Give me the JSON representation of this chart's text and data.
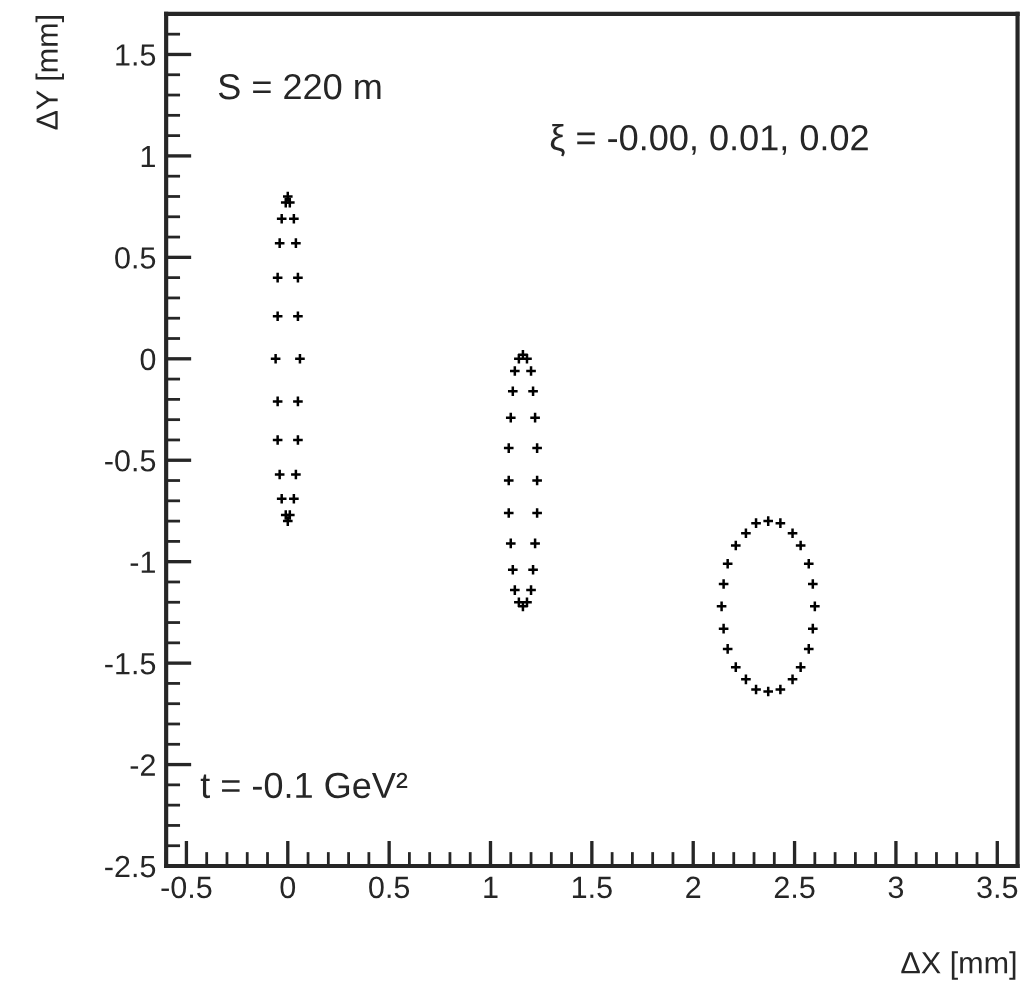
{
  "chart_data": {
    "type": "scatter",
    "xlabel": "ΔX [mm]",
    "ylabel": "ΔY [mm]",
    "annotations": [
      "S = 220 m",
      "ξ = -0.00, 0.01, 0.02",
      "t = -0.1 GeV²"
    ],
    "marker": "cross",
    "grid": false,
    "xlim": [
      -0.6,
      3.6
    ],
    "ylim": [
      -2.5,
      1.7
    ],
    "xticks": [
      -0.5,
      0,
      0.5,
      1,
      1.5,
      2,
      2.5,
      3,
      3.5
    ],
    "yticks": [
      -2.5,
      -2,
      -1.5,
      -1,
      -0.5,
      0,
      0.5,
      1,
      1.5
    ],
    "series": [
      {
        "color": "#000000",
        "x": [
          0,
          0.01,
          0.03,
          0.04,
          0.05,
          0.05,
          0.06,
          0.05,
          0.05,
          0.04,
          0.03,
          0.01,
          0,
          -0.01,
          -0.03,
          -0.04,
          -0.05,
          -0.05,
          -0.06,
          -0.05,
          -0.05,
          -0.04,
          -0.03,
          -0.01
        ],
        "values": [
          0.8,
          0.77,
          0.69,
          0.57,
          0.4,
          0.21,
          0,
          -0.21,
          -0.4,
          -0.57,
          -0.69,
          -0.77,
          -0.8,
          -0.77,
          -0.69,
          -0.57,
          -0.4,
          -0.21,
          0,
          0.21,
          0.4,
          0.57,
          0.69,
          0.77
        ]
      },
      {
        "color": "#000000",
        "x": [
          1.16,
          1.18,
          1.2,
          1.21,
          1.22,
          1.23,
          1.23,
          1.23,
          1.22,
          1.21,
          1.2,
          1.18,
          1.16,
          1.14,
          1.12,
          1.11,
          1.1,
          1.09,
          1.09,
          1.09,
          1.1,
          1.11,
          1.12,
          1.14
        ],
        "values": [
          0.02,
          0,
          -0.06,
          -0.16,
          -0.29,
          -0.44,
          -0.6,
          -0.76,
          -0.91,
          -1.04,
          -1.14,
          -1.2,
          -1.22,
          -1.2,
          -1.14,
          -1.04,
          -0.91,
          -0.76,
          -0.6,
          -0.44,
          -0.29,
          -0.16,
          -0.06,
          0
        ]
      },
      {
        "color": "#000000",
        "x": [
          2.37,
          2.43,
          2.49,
          2.53,
          2.57,
          2.59,
          2.6,
          2.59,
          2.57,
          2.53,
          2.49,
          2.43,
          2.37,
          2.31,
          2.26,
          2.21,
          2.17,
          2.15,
          2.14,
          2.15,
          2.17,
          2.21,
          2.26,
          2.31
        ],
        "values": [
          -0.8,
          -0.81,
          -0.86,
          -0.92,
          -1.01,
          -1.11,
          -1.22,
          -1.33,
          -1.43,
          -1.52,
          -1.58,
          -1.63,
          -1.64,
          -1.63,
          -1.58,
          -1.52,
          -1.43,
          -1.33,
          -1.22,
          -1.11,
          -1.01,
          -0.92,
          -0.86,
          -0.81
        ]
      }
    ]
  }
}
